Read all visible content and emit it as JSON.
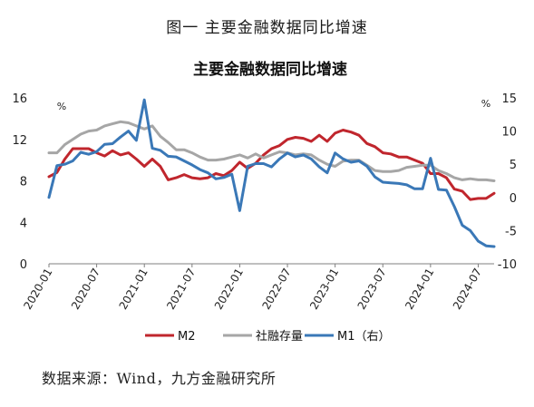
{
  "figure_caption": "图一  主要金融数据同比增速",
  "source_note": "数据来源：Wind，九方金融研究所",
  "chart_data": {
    "type": "line",
    "title": "主要金融数据同比增速",
    "left_axis": {
      "unit": "%",
      "ylim": [
        0,
        16
      ],
      "ticks": [
        "0",
        "4",
        "8",
        "12",
        "16"
      ]
    },
    "right_axis": {
      "unit": "%",
      "ylim": [
        -10,
        15
      ],
      "ticks": [
        "-10",
        "-5",
        "0",
        "5",
        "10",
        "15"
      ]
    },
    "x_ticks": [
      {
        "label": "2020-01",
        "index": 0
      },
      {
        "label": "2020-07",
        "index": 6
      },
      {
        "label": "2021-01",
        "index": 12
      },
      {
        "label": "2021-07",
        "index": 18
      },
      {
        "label": "2022-01",
        "index": 24
      },
      {
        "label": "2022-07",
        "index": 30
      },
      {
        "label": "2023-01",
        "index": 36
      },
      {
        "label": "2023-07",
        "index": 42
      },
      {
        "label": "2024-01",
        "index": 48
      },
      {
        "label": "2024-07",
        "index": 54
      }
    ],
    "grid": false,
    "legend_position": "bottom",
    "series": [
      {
        "name": "M2",
        "axis": "left",
        "color": "#c0262d",
        "values": [
          8.4,
          8.8,
          10.1,
          11.1,
          11.1,
          11.1,
          10.7,
          10.4,
          10.9,
          10.5,
          10.7,
          10.1,
          9.4,
          10.1,
          9.4,
          8.1,
          8.3,
          8.6,
          8.3,
          8.2,
          8.3,
          8.7,
          8.5,
          9.0,
          9.8,
          9.2,
          9.7,
          10.5,
          11.1,
          11.4,
          12.0,
          12.2,
          12.1,
          11.8,
          12.4,
          11.8,
          12.6,
          12.9,
          12.7,
          12.4,
          11.6,
          11.3,
          10.7,
          10.6,
          10.3,
          10.3,
          10.0,
          9.7,
          8.7,
          8.7,
          8.3,
          7.2,
          7.0,
          6.2,
          6.3,
          6.3,
          6.8
        ]
      },
      {
        "name": "社融存量",
        "axis": "left",
        "color": "#a6a6a6",
        "values": [
          10.7,
          10.7,
          11.5,
          12.0,
          12.5,
          12.8,
          12.9,
          13.3,
          13.5,
          13.7,
          13.6,
          13.3,
          13.0,
          13.3,
          12.3,
          11.7,
          11.0,
          11.0,
          10.7,
          10.3,
          10.0,
          10.0,
          10.1,
          10.3,
          10.5,
          10.2,
          10.6,
          10.2,
          10.5,
          10.8,
          10.7,
          10.5,
          10.6,
          10.5,
          10.0,
          9.6,
          9.4,
          9.9,
          10.0,
          10.0,
          9.5,
          9.0,
          8.9,
          8.9,
          9.0,
          9.3,
          9.4,
          9.5,
          9.5,
          9.0,
          8.7,
          8.3,
          8.1,
          8.2,
          8.1,
          8.1,
          8.0
        ]
      },
      {
        "name": "M1（右）",
        "axis": "right",
        "color": "#3a78b7",
        "values": [
          0.0,
          4.8,
          5.0,
          5.5,
          6.8,
          6.5,
          6.9,
          8.0,
          8.1,
          9.1,
          10.0,
          8.6,
          14.7,
          7.4,
          7.1,
          6.2,
          6.1,
          5.5,
          4.9,
          4.2,
          3.7,
          2.8,
          3.0,
          3.5,
          -2.0,
          4.7,
          5.1,
          5.1,
          4.6,
          5.8,
          6.7,
          6.1,
          6.4,
          5.8,
          4.6,
          3.7,
          6.7,
          5.8,
          5.3,
          5.5,
          4.7,
          3.1,
          2.3,
          2.2,
          2.1,
          1.9,
          1.3,
          1.3,
          5.9,
          1.2,
          1.1,
          -1.4,
          -4.2,
          -5.0,
          -6.6,
          -7.3,
          -7.4
        ]
      }
    ]
  }
}
